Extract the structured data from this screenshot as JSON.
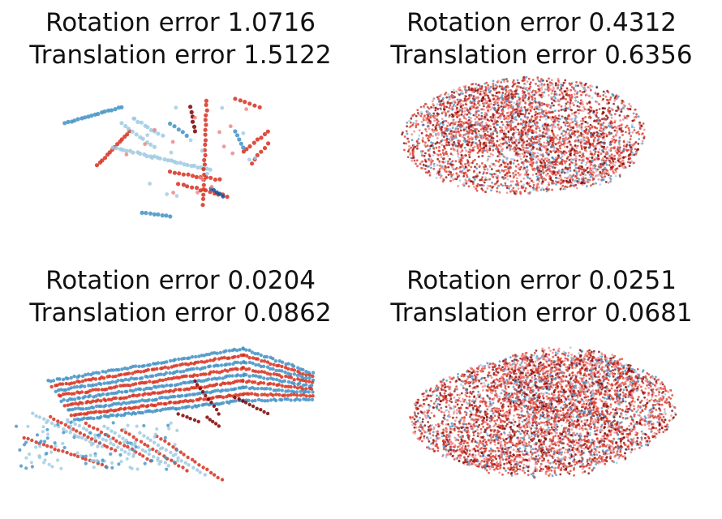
{
  "panels": [
    {
      "rotation_label": "Rotation error 1.0716",
      "translation_label": "Translation error 1.5122",
      "kind": "sparse"
    },
    {
      "rotation_label": "Rotation error 0.4312",
      "translation_label": "Translation error 0.6356",
      "kind": "dense-blob"
    },
    {
      "rotation_label": "Rotation error 0.0204",
      "translation_label": "Translation error 0.0862",
      "kind": "lidar-car"
    },
    {
      "rotation_label": "Rotation error 0.0251",
      "translation_label": "Translation error 0.0681",
      "kind": "dense-car"
    }
  ],
  "colors": {
    "source_light": "#9ecae1",
    "source_mid": "#4292c6",
    "source_dark": "#08519c",
    "target_light": "#f08080",
    "target_mid": "#d7301f",
    "target_dark": "#7f0000"
  }
}
